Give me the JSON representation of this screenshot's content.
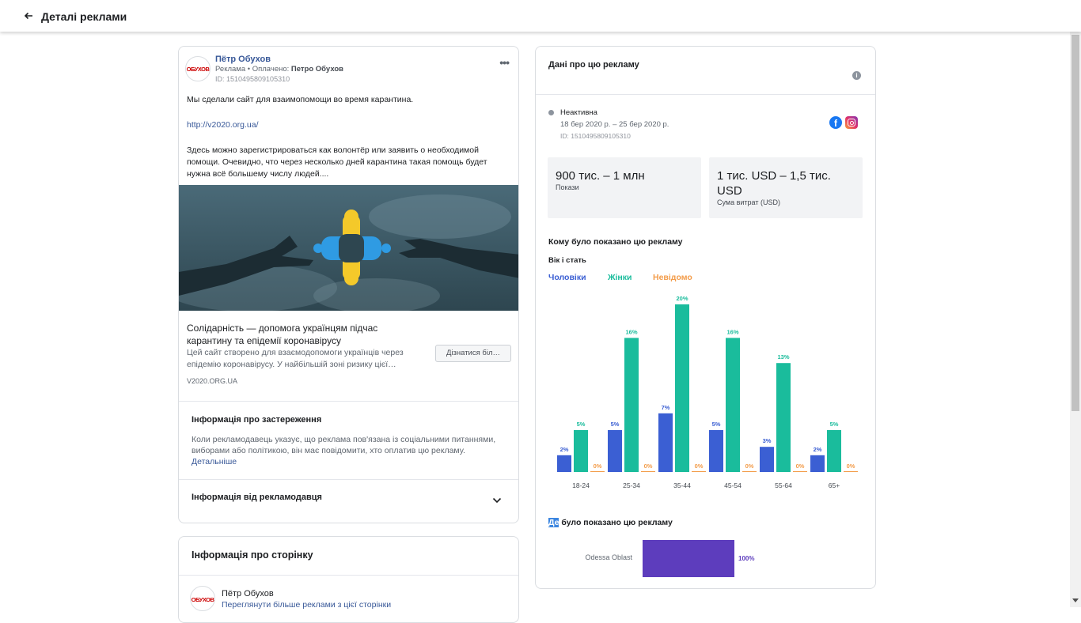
{
  "header": {
    "title": "Деталі реклами",
    "back_icon": "arrow-left-icon"
  },
  "ad": {
    "advertiser_name": "Пётр Обухов",
    "avatar_text": "ОБУХОВ",
    "sub_prefix": "Реклама • Оплачено:",
    "sub_payer": "Петро Обухов",
    "id_line": "ID: 1510495809105310",
    "text_line1": "Мы сделали сайт для взаимопомощи во время карантина.",
    "text_link": "http://v2020.org.ua/",
    "text_line2": "Здесь можно зарегистрироваться как волонтёр или заявить о необходимой помощи. Очевидно, что через несколько дней карантина такая помощь будет нужна всё большему числу людей....",
    "link_title": "Солідарність — допомога українцям підчас карантину та епідемії коронавірусу",
    "link_description": "Цей сайт створено для взаємодопомоги українців через епідемію коронавірусу. У найбільшій зоні ризику цієї…",
    "link_domain": "V2020.ORG.UA",
    "cta_button": "Дізнатися біл…"
  },
  "disclaimer": {
    "title": "Інформація про застереження",
    "text": "Коли рекламодавець указує, що реклама пов'язана із соціальними питаннями, виборами або політикою, він має повідомити, хто оплатив цю рекламу.",
    "more_link": "Детальніше"
  },
  "advertiser_info": {
    "title": "Інформація від рекламодавця"
  },
  "page_info": {
    "title": "Інформація про сторінку",
    "name": "Пётр Обухов",
    "avatar_text": "ОБУХОВ",
    "link": "Переглянути більше реклами з цієї сторінки"
  },
  "info": {
    "title": "Дані про цю рекламу",
    "status": "Неактивна",
    "dates": "18 бер 2020 р. – 25 бер 2020 р.",
    "id_line": "ID: 1510495809105310",
    "impressions_value": "900 тис. – 1 млн",
    "impressions_label": "Покази",
    "spend_value": "1 тис. USD – 1,5 тис. USD",
    "spend_label": "Сума витрат (USD)",
    "shown_title": "Кому було показано цю рекламу",
    "age_gender_title": "Вік і стать",
    "where_highlight": "Де",
    "where_rest": " було показано цю рекламу"
  },
  "colors": {
    "men": "#3b5fd3",
    "women": "#1abc9c",
    "unknown": "#f39c4a",
    "region": "#5d3dbd"
  },
  "chart_data": [
    {
      "type": "bar",
      "categories": [
        "18-24",
        "25-34",
        "35-44",
        "45-54",
        "55-64",
        "65+"
      ],
      "series": [
        {
          "name": "Чоловіки",
          "values": [
            2,
            5,
            7,
            5,
            3,
            2
          ]
        },
        {
          "name": "Жінки",
          "values": [
            5,
            16,
            20,
            16,
            13,
            5
          ]
        },
        {
          "name": "Невідомо",
          "values": [
            0,
            0,
            0,
            0,
            0,
            0
          ]
        }
      ],
      "unit": "%",
      "ylim": [
        0,
        20
      ],
      "legend": "top-left",
      "grid": false
    },
    {
      "type": "bar",
      "orientation": "horizontal",
      "categories": [
        "Odessa Oblast"
      ],
      "values": [
        100
      ],
      "unit": "%"
    }
  ]
}
